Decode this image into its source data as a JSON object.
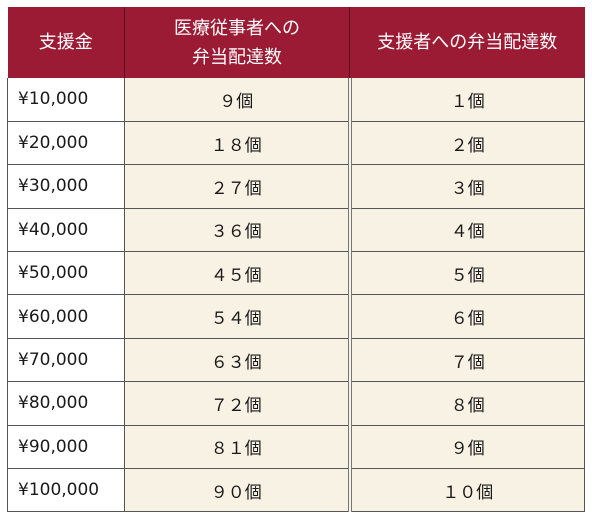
{
  "table": {
    "headers": {
      "amount": "支援金",
      "medical_line1": "医療従事者への",
      "medical_line2": "弁当配達数",
      "supporter": "支援者への弁当配達数"
    },
    "rows": [
      {
        "amount": "¥10,000",
        "medical": "９個",
        "supporter": "１個"
      },
      {
        "amount": "¥20,000",
        "medical": "１８個",
        "supporter": "２個"
      },
      {
        "amount": "¥30,000",
        "medical": "２７個",
        "supporter": "３個"
      },
      {
        "amount": "¥40,000",
        "medical": "３６個",
        "supporter": "４個"
      },
      {
        "amount": "¥50,000",
        "medical": "４５個",
        "supporter": "５個"
      },
      {
        "amount": "¥60,000",
        "medical": "５４個",
        "supporter": "６個"
      },
      {
        "amount": "¥70,000",
        "medical": "６３個",
        "supporter": "７個"
      },
      {
        "amount": "¥80,000",
        "medical": "７２個",
        "supporter": "８個"
      },
      {
        "amount": "¥90,000",
        "medical": "８１個",
        "supporter": "９個"
      },
      {
        "amount": "¥100,000",
        "medical": "９０個",
        "supporter": "１０個"
      }
    ]
  },
  "colors": {
    "header_bg": "#9c1b34",
    "cell_bg": "#f7f2e4"
  }
}
